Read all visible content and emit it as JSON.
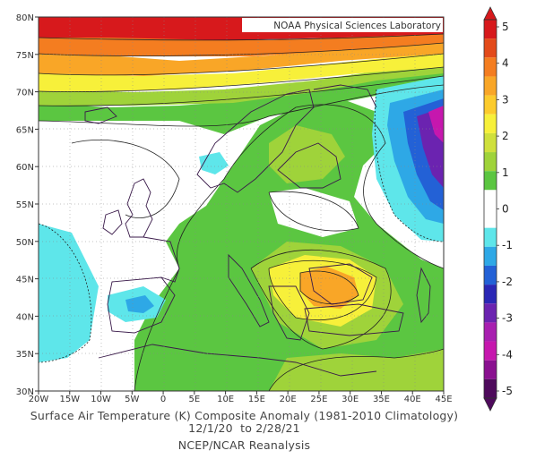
{
  "map": {
    "credit": "NOAA Physical Sciences Laboratory",
    "lon_ticks": [
      "20W",
      "15W",
      "10W",
      "5W",
      "0",
      "5E",
      "10E",
      "15E",
      "20E",
      "25E",
      "30E",
      "35E",
      "40E",
      "45E"
    ],
    "lat_ticks": [
      "80N",
      "75N",
      "70N",
      "65N",
      "60N",
      "55N",
      "50N",
      "45N",
      "40N",
      "35N",
      "30N"
    ]
  },
  "caption": {
    "line1": "Surface Air Temperature (K) Composite Anomaly (1981-2010 Climatology)",
    "line2": "12/1/20  to 2/28/21",
    "line3": "NCEP/NCAR Reanalysis"
  },
  "colorbar": {
    "labels": [
      "5",
      "4",
      "3",
      "2",
      "1",
      "0",
      "-1",
      "-2",
      "-3",
      "-4",
      "-5"
    ],
    "colors": [
      "#d7191c",
      "#e34a1a",
      "#f47d20",
      "#f9a627",
      "#fccb2c",
      "#f7f03a",
      "#cfe03c",
      "#9fd33a",
      "#5bc641",
      "#ffffff",
      "#ffffff",
      "#5ee6ea",
      "#2ea8e6",
      "#2361d6",
      "#2a27b5",
      "#6b23b0",
      "#a81fb0",
      "#c617ae",
      "#8a1090",
      "#4e0a5c"
    ]
  },
  "palette": {
    "warm_4": "#d7191c",
    "warm_3": "#f47d20",
    "warm_2": "#fccb2c",
    "warm_1": "#cfe03c",
    "warm_05": "#5bc641",
    "cold_1": "#5ee6ea",
    "cold_2": "#2ea8e6",
    "cold_3": "#2361d6",
    "cold_4": "#6b23b0",
    "cold_5": "#c617ae"
  }
}
